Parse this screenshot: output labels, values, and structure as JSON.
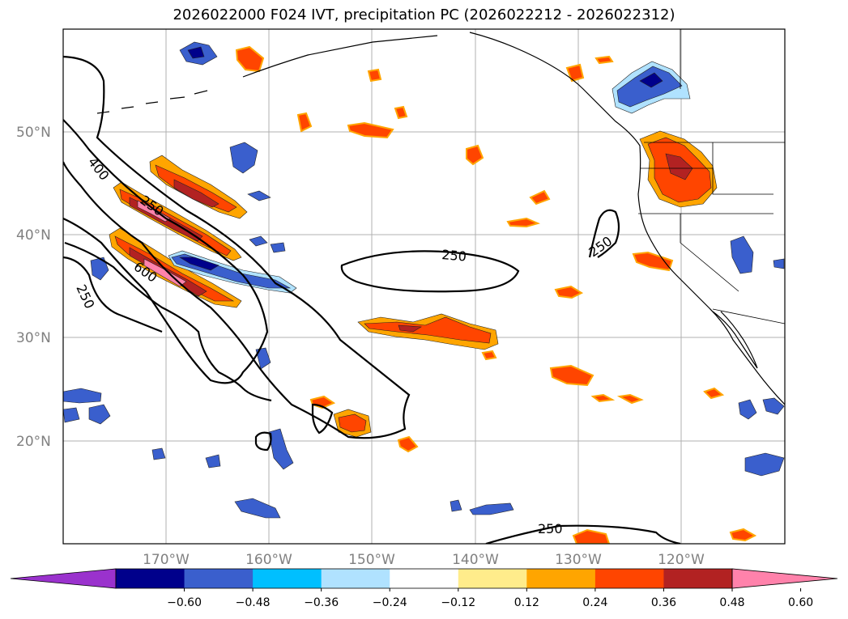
{
  "title": "2026022000 F024 IVT, precipitation PC (2026022212 - 2026022312)",
  "map": {
    "lat_labels": [
      "50°N",
      "40°N",
      "30°N",
      "20°N"
    ],
    "lon_labels": [
      "170°W",
      "160°W",
      "150°W",
      "140°W",
      "130°W",
      "120°W"
    ],
    "contour_labels": [
      "400",
      "250",
      "600",
      "250",
      "250",
      "250",
      "250"
    ]
  },
  "colorbar": {
    "colors": [
      "#9a32cd",
      "#00008b",
      "#3a5fcd",
      "#00bfff",
      "#b0e2ff",
      "#ffffff",
      "#ffec8b",
      "#ffa500",
      "#ff4500",
      "#b22222",
      "#ff82ab"
    ],
    "tick_labels": [
      "−0.60",
      "−0.48",
      "−0.36",
      "−0.24",
      "−0.12",
      "0.12",
      "0.24",
      "0.36",
      "0.48",
      "0.60"
    ]
  }
}
